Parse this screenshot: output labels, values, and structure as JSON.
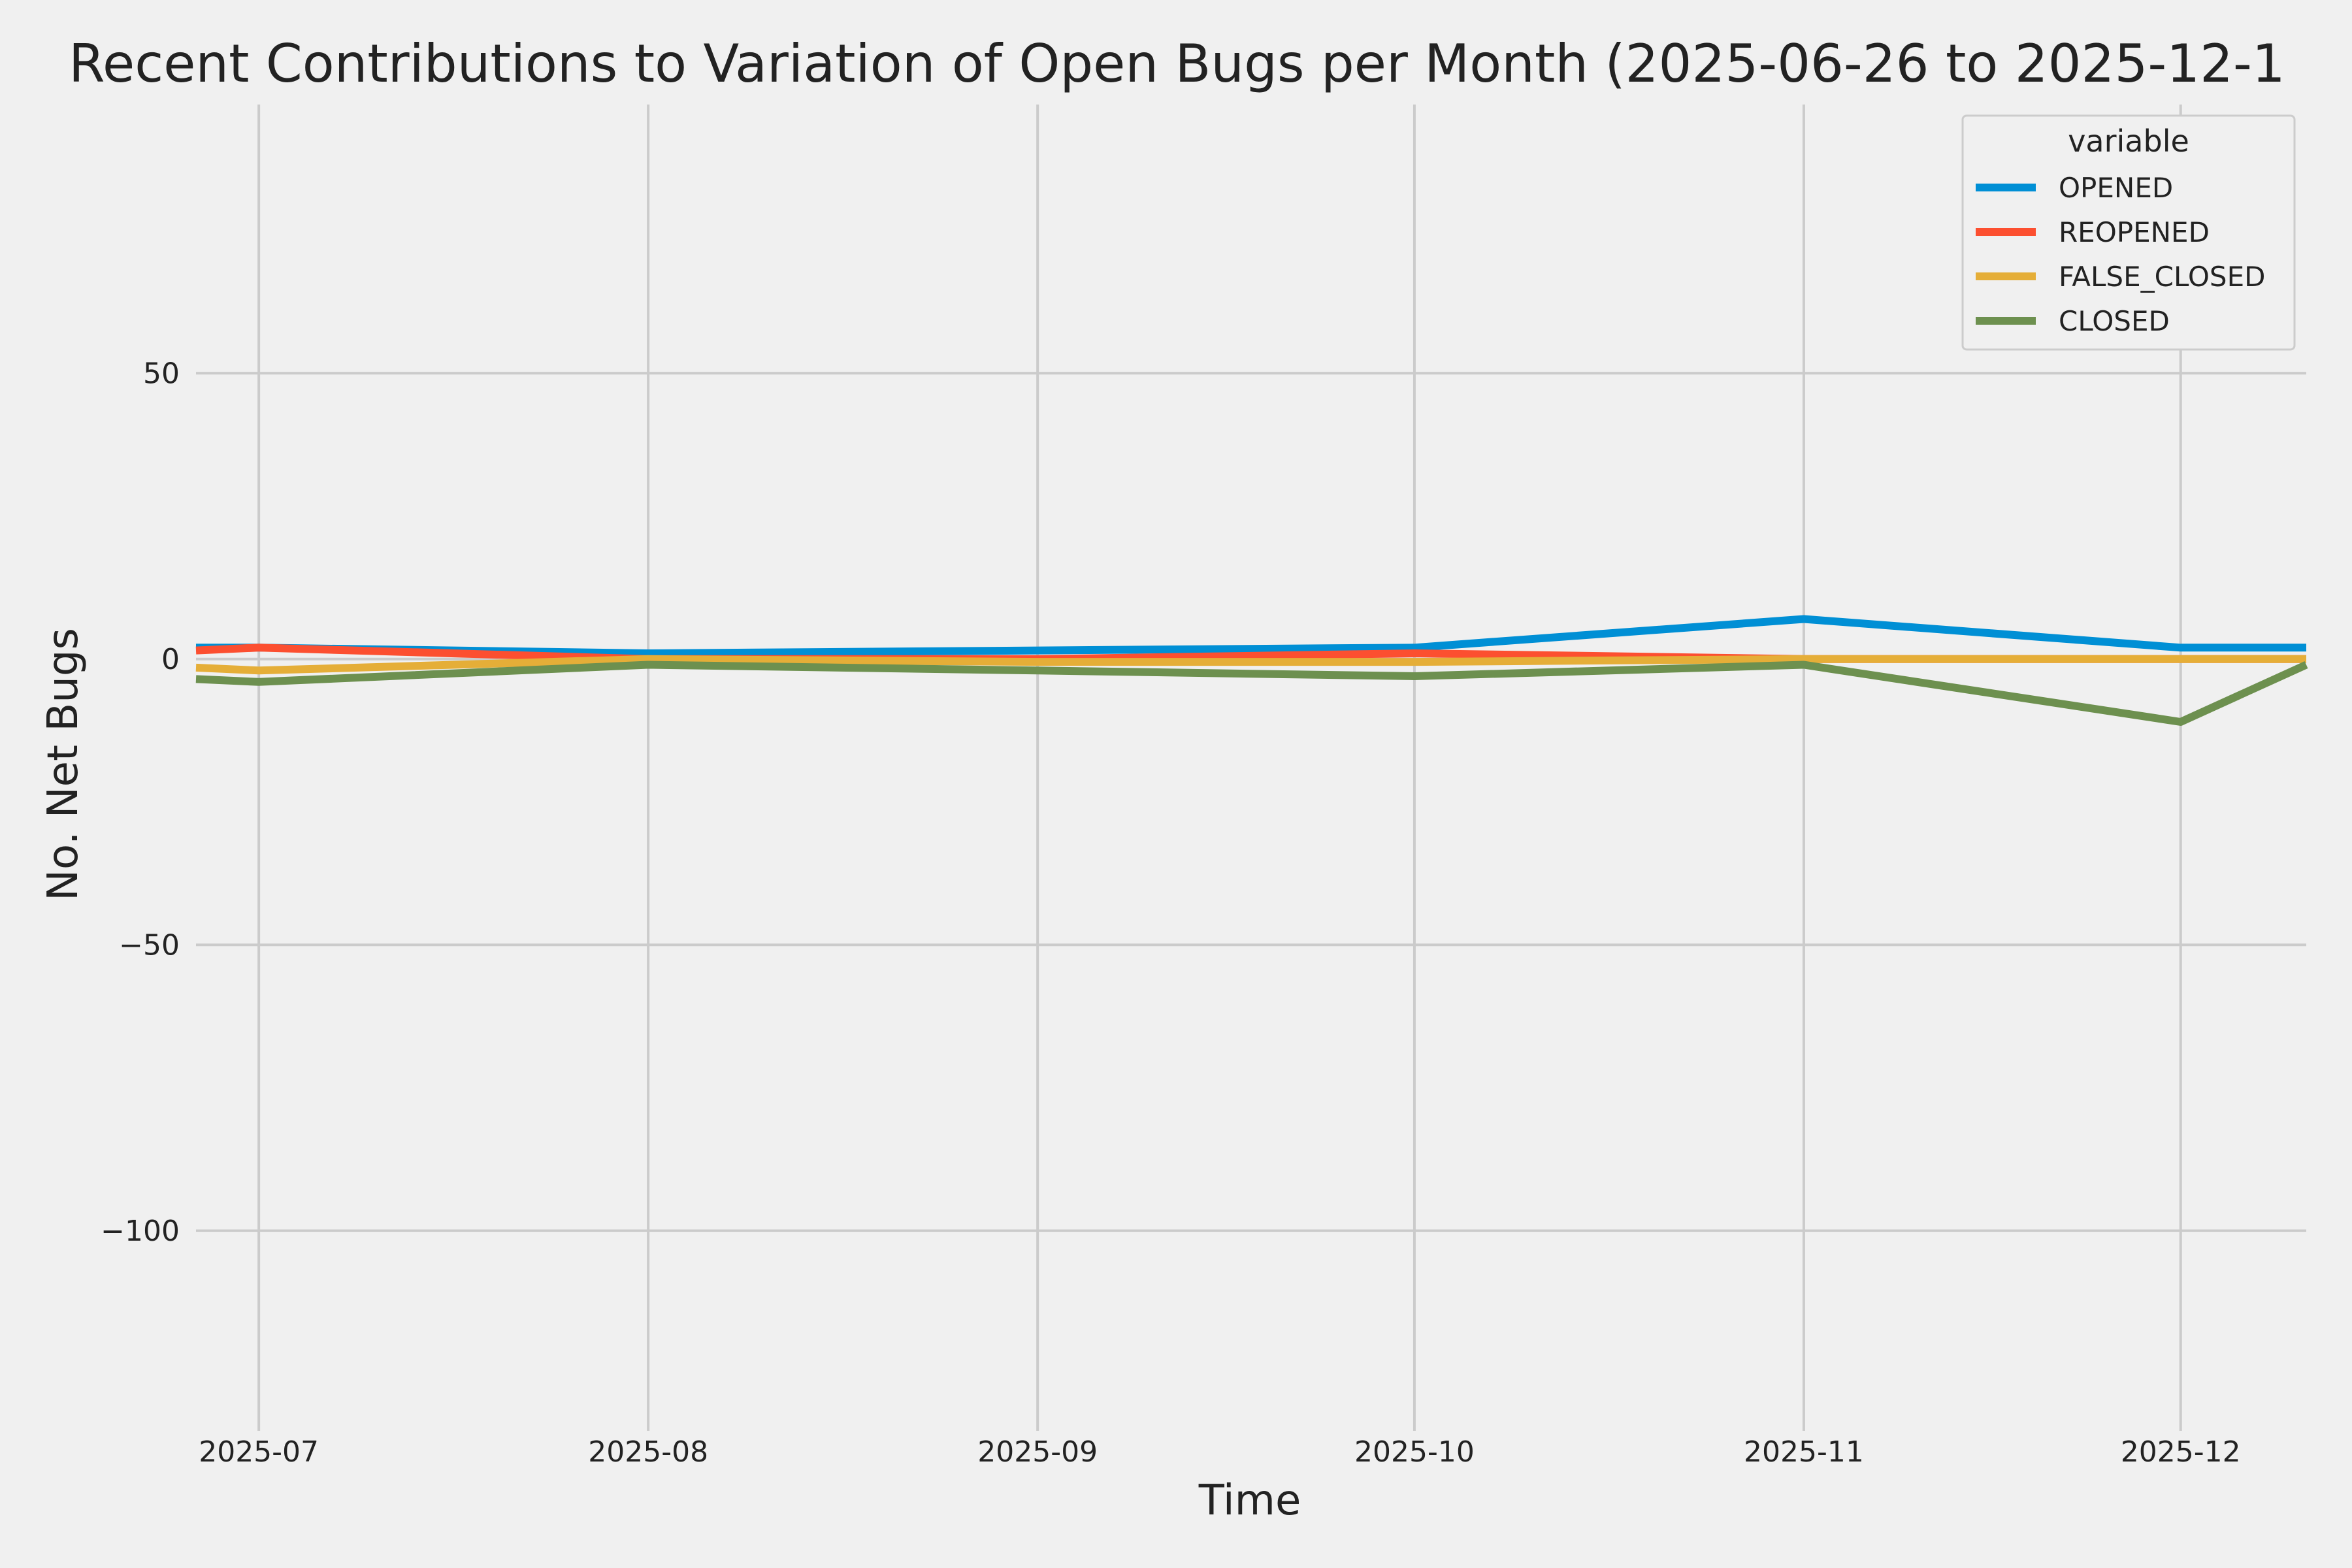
{
  "chart_data": {
    "type": "line",
    "title": "Recent Contributions to Variation of Open Bugs per Month (2025-06-26 to 2025-12-1",
    "xlabel": "Time",
    "ylabel": "No. Net Bugs",
    "x_tick_labels": [
      {
        "date": "2025-07-01",
        "label": "2025-07"
      },
      {
        "date": "2025-08-01",
        "label": "2025-08"
      },
      {
        "date": "2025-09-01",
        "label": "2025-09"
      },
      {
        "date": "2025-10-01",
        "label": "2025-10"
      },
      {
        "date": "2025-11-01",
        "label": "2025-11"
      },
      {
        "date": "2025-12-01",
        "label": "2025-12"
      }
    ],
    "y_ticks": [
      {
        "value": 50,
        "label": "50"
      },
      {
        "value": 0,
        "label": "0"
      },
      {
        "value": -50,
        "label": "−50"
      },
      {
        "value": -100,
        "label": "−100"
      }
    ],
    "xlim": [
      "2025-06-26",
      "2025-12-11"
    ],
    "ylim": [
      -135,
      97
    ],
    "grid": true,
    "legend": {
      "title": "variable",
      "placement": "top-right"
    },
    "series": [
      {
        "name": "OPENED",
        "color": "#008fd5",
        "x": [
          "2025-06-26",
          "2025-07-01",
          "2025-08-01",
          "2025-09-01",
          "2025-10-01",
          "2025-11-01",
          "2025-12-01",
          "2025-12-11"
        ],
        "y": [
          2,
          2,
          1,
          1.5,
          2,
          7,
          2,
          2
        ]
      },
      {
        "name": "REOPENED",
        "color": "#fc4f30",
        "x": [
          "2025-06-26",
          "2025-07-01",
          "2025-08-01",
          "2025-09-01",
          "2025-10-01",
          "2025-11-01",
          "2025-12-01",
          "2025-12-11"
        ],
        "y": [
          1.5,
          2,
          0,
          0,
          1,
          0,
          0,
          0
        ]
      },
      {
        "name": "FALSE_CLOSED",
        "color": "#e5ae38",
        "x": [
          "2025-06-26",
          "2025-07-01",
          "2025-08-01",
          "2025-09-01",
          "2025-10-01",
          "2025-11-01",
          "2025-12-01",
          "2025-12-11"
        ],
        "y": [
          -1.5,
          -2,
          0,
          -0.5,
          -0.5,
          0,
          0,
          0
        ]
      },
      {
        "name": "CLOSED",
        "color": "#6d904f",
        "x": [
          "2025-06-26",
          "2025-07-01",
          "2025-08-01",
          "2025-09-01",
          "2025-10-01",
          "2025-11-01",
          "2025-12-01",
          "2025-12-11"
        ],
        "y": [
          -3.5,
          -4,
          -1,
          -2,
          -3,
          -1,
          -11,
          -1
        ]
      }
    ]
  }
}
